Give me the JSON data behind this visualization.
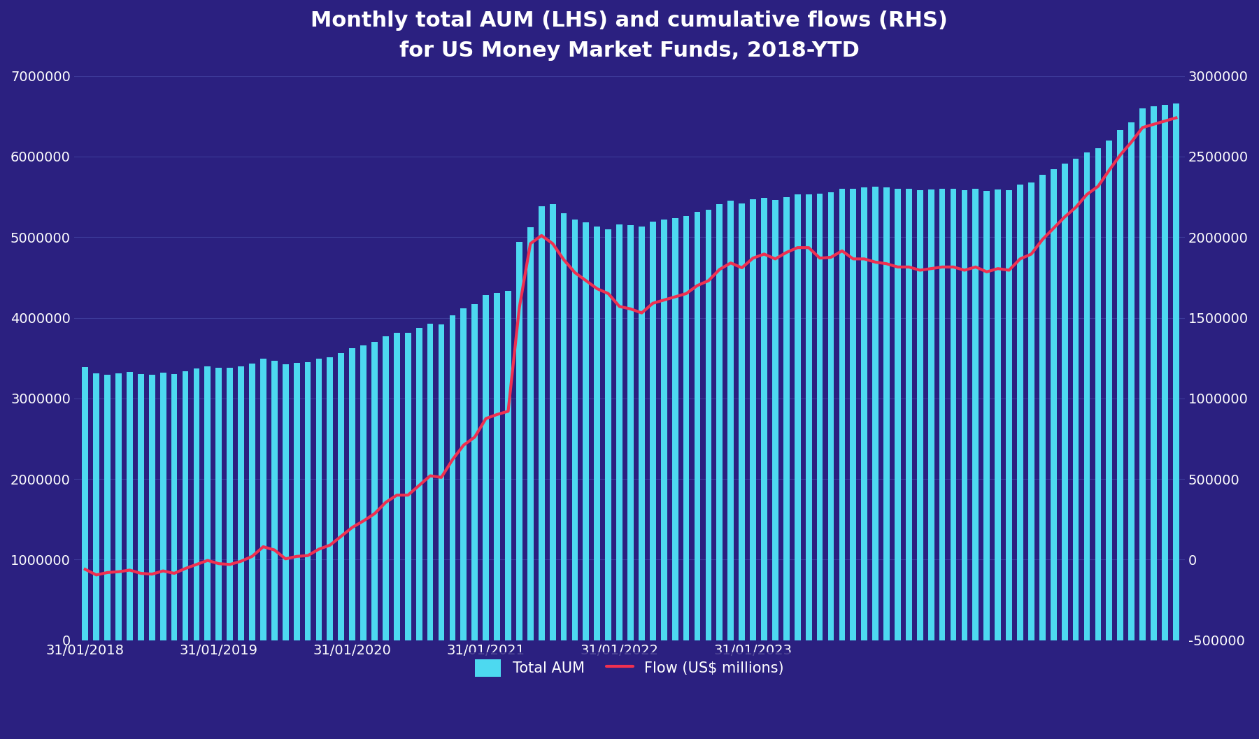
{
  "title_line1": "Monthly total AUM (LHS) and cumulative flows (RHS)",
  "title_line2": "for US Money Market Funds, 2018-YTD",
  "background_color": "#2b2080",
  "bar_color": "#4dd9f0",
  "line_color": "#f03050",
  "text_color": "#ffffff",
  "grid_color": "#3d3a99",
  "ylim_left": [
    0,
    7000000
  ],
  "ylim_right": [
    -500000,
    3000000
  ],
  "yticks_left": [
    0,
    1000000,
    2000000,
    3000000,
    4000000,
    5000000,
    6000000,
    7000000
  ],
  "yticks_right": [
    -500000,
    0,
    500000,
    1000000,
    1500000,
    2000000,
    2500000,
    3000000
  ],
  "xtick_labels": [
    "31/01/2018",
    "31/01/2019",
    "31/01/2020",
    "31/01/2021",
    "31/01/2022",
    "31/01/2023"
  ],
  "xtick_positions": [
    0,
    12,
    24,
    36,
    48,
    60
  ],
  "legend_aum_label": "Total AUM",
  "legend_flow_label": "Flow (US$ millions)",
  "aum_values": [
    3390000,
    3310000,
    3290000,
    3310000,
    3330000,
    3300000,
    3290000,
    3320000,
    3300000,
    3340000,
    3370000,
    3400000,
    3380000,
    3380000,
    3400000,
    3430000,
    3490000,
    3470000,
    3420000,
    3440000,
    3450000,
    3490000,
    3510000,
    3560000,
    3620000,
    3660000,
    3700000,
    3770000,
    3810000,
    3810000,
    3870000,
    3930000,
    3920000,
    4030000,
    4120000,
    4170000,
    4280000,
    4310000,
    4330000,
    4940000,
    5120000,
    5380000,
    5410000,
    5300000,
    5220000,
    5180000,
    5130000,
    5100000,
    5160000,
    5150000,
    5130000,
    5190000,
    5220000,
    5240000,
    5260000,
    5310000,
    5340000,
    5410000,
    5450000,
    5420000,
    5470000,
    5490000,
    5460000,
    5500000,
    5530000,
    5530000,
    5540000,
    5560000,
    5600000,
    5600000,
    5620000,
    5630000,
    5620000,
    5600000,
    5600000,
    5580000,
    5590000,
    5600000,
    5600000,
    5580000,
    5600000,
    5570000,
    5590000,
    5580000,
    5650000,
    5680000,
    5770000,
    5840000,
    5910000,
    5970000,
    6050000,
    6100000,
    6200000,
    6330000,
    6420000,
    6600000,
    6620000,
    6640000,
    6660000
  ],
  "flow_values": [
    -60000,
    -95000,
    -80000,
    -75000,
    -65000,
    -85000,
    -90000,
    -70000,
    -85000,
    -55000,
    -30000,
    -5000,
    -25000,
    -30000,
    -10000,
    20000,
    80000,
    60000,
    5000,
    20000,
    25000,
    65000,
    90000,
    145000,
    200000,
    240000,
    285000,
    355000,
    400000,
    400000,
    460000,
    520000,
    510000,
    620000,
    710000,
    760000,
    875000,
    900000,
    920000,
    1560000,
    1960000,
    2010000,
    1960000,
    1860000,
    1780000,
    1730000,
    1680000,
    1650000,
    1570000,
    1555000,
    1530000,
    1590000,
    1610000,
    1630000,
    1650000,
    1700000,
    1730000,
    1800000,
    1840000,
    1810000,
    1870000,
    1895000,
    1865000,
    1905000,
    1935000,
    1935000,
    1870000,
    1875000,
    1915000,
    1865000,
    1865000,
    1845000,
    1835000,
    1815000,
    1815000,
    1795000,
    1805000,
    1815000,
    1815000,
    1795000,
    1815000,
    1785000,
    1805000,
    1795000,
    1865000,
    1895000,
    1985000,
    2055000,
    2125000,
    2185000,
    2265000,
    2315000,
    2415000,
    2510000,
    2590000,
    2680000,
    2700000,
    2720000,
    2740000
  ],
  "n_months": 99,
  "bar_width": 0.55,
  "title_fontsize": 22
}
